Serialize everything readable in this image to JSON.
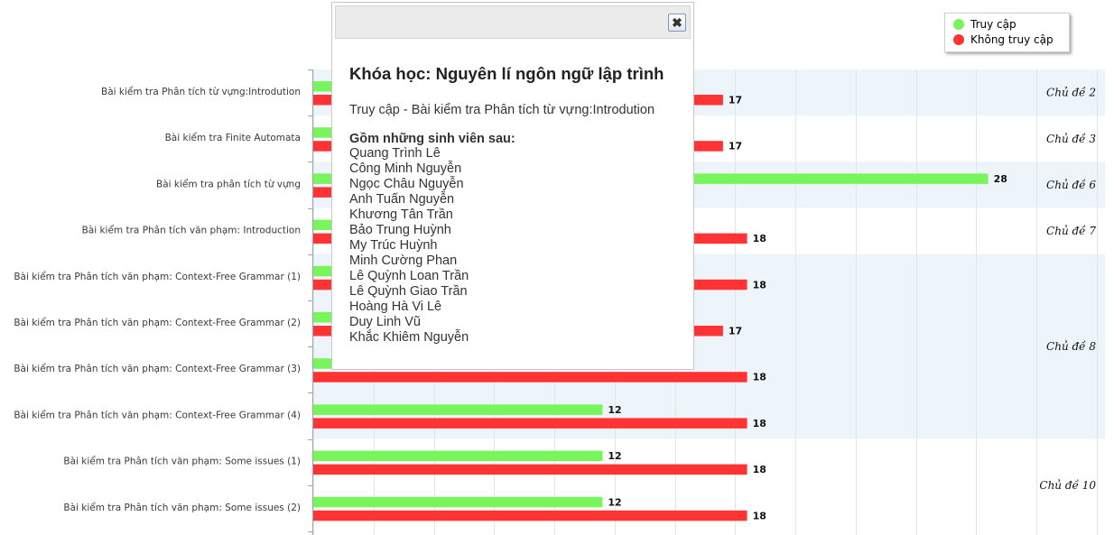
{
  "chart_data": {
    "type": "bar",
    "orientation": "horizontal",
    "categories": [
      "Bài kiểm tra Phân tích từ vựng:Introdution",
      "Bài kiểm tra Finite Automata",
      "Bài kiểm tra phân tích từ vựng",
      "Bài kiểm tra Phân tích văn phạm: Introduction",
      "Bài kiểm tra Phân tích văn phạm: Context-Free Grammar (1)",
      "Bài kiểm tra Phân tích văn phạm: Context-Free Grammar (2)",
      "Bài kiểm tra Phân tích văn phạm: Context-Free Grammar (3)",
      "Bài kiểm tra Phân tích văn phạm: Context-Free Grammar (4)",
      "Bài kiểm tra Phân tích văn phạm: Some issues (1)",
      "Bài kiểm tra Phân tích văn phạm: Some issues (2)"
    ],
    "series": [
      {
        "name": "Truy cập",
        "color": "#77f55a",
        "values": [
          13,
          13,
          28,
          13,
          13,
          13,
          12,
          12,
          12,
          12
        ]
      },
      {
        "name": "Không truy cập",
        "color": "#ff3333",
        "values": [
          17,
          17,
          2,
          18,
          18,
          17,
          18,
          18,
          18,
          18
        ]
      }
    ],
    "visible_value_labels": {
      "Truy cập": [
        null,
        null,
        "28",
        null,
        null,
        null,
        null,
        "12",
        "12",
        "12"
      ],
      "Không truy cập": [
        "17",
        "17",
        null,
        "18",
        "18",
        "17",
        "18",
        "18",
        "18",
        "18"
      ]
    },
    "groups": [
      {
        "label": "Chủ đề 2",
        "rows": [
          0,
          0
        ]
      },
      {
        "label": "Chủ đề 3",
        "rows": [
          1,
          1
        ]
      },
      {
        "label": "Chủ đề 6",
        "rows": [
          2,
          2
        ]
      },
      {
        "label": "Chủ đề 7",
        "rows": [
          3,
          3
        ]
      },
      {
        "label": "Chủ đề 8",
        "rows": [
          4,
          7
        ]
      },
      {
        "label": "Chủ đề 10",
        "rows": [
          8,
          9
        ]
      }
    ],
    "xlim": [
      0,
      33
    ],
    "grid": true,
    "legend": "top-right",
    "band_color": "#edf5fb"
  },
  "legend": {
    "items": [
      {
        "label": "Truy cập",
        "color": "#77f55a"
      },
      {
        "label": "Không truy cập",
        "color": "#ff3333"
      }
    ]
  },
  "dialog": {
    "close_icon": "close-icon",
    "close_glyph": "✖",
    "course_title": "Khóa học: Nguyên lí ngôn ngữ lập trình",
    "subtitle": "Truy cập - Bài kiểm tra Phân tích từ vựng:Introdution",
    "list_heading": "Gồm những sinh viên sau:",
    "students": [
      "Quang Trình Lê",
      "Công Minh Nguyễn",
      "Ngọc Châu Nguyễn",
      "Anh Tuấn Nguyễn",
      "Khương Tân Trần",
      "Bảo Trung Huỳnh",
      "My Trúc Huỳnh",
      "Minh Cường Phan",
      "Lê Quỳnh Loan Trần",
      "Lê Quỳnh Giao Trần",
      "Hoàng Hà Vi Lê",
      "Duy Linh Vũ",
      "Khắc Khiêm Nguyễn"
    ]
  }
}
